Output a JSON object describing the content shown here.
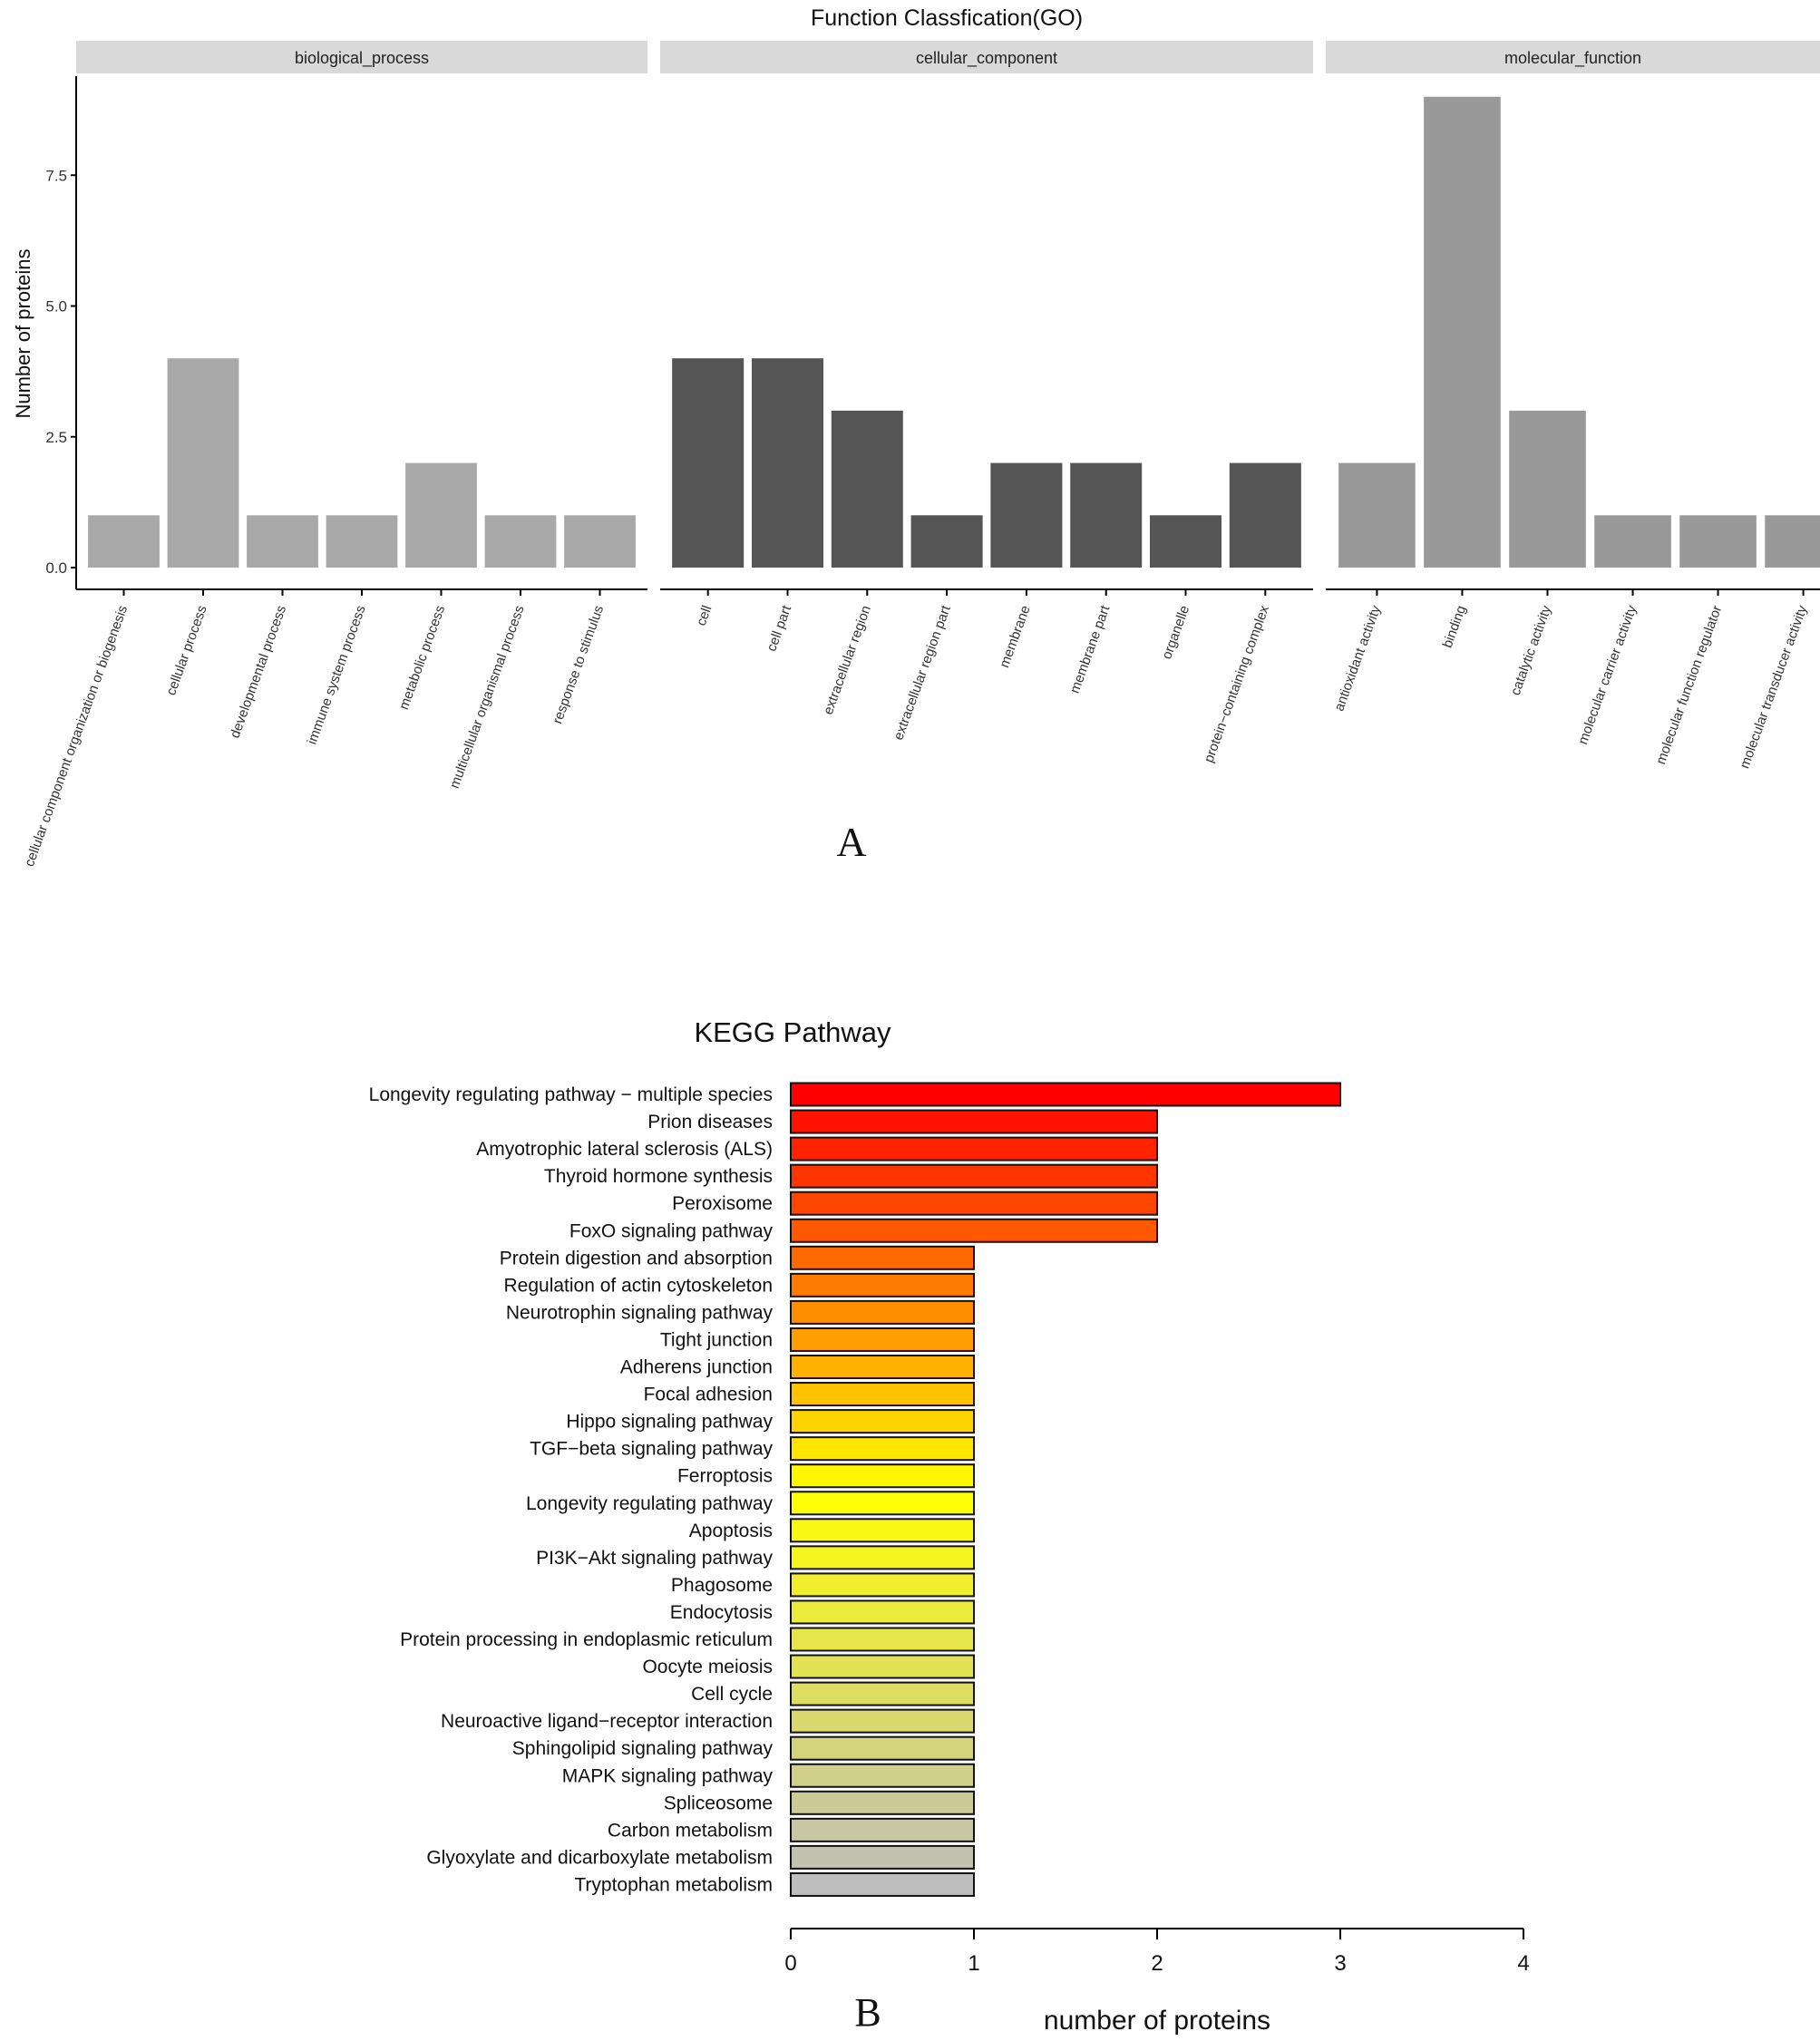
{
  "chart_data": [
    {
      "type": "bar",
      "title": "Function Classfication(GO)",
      "ylabel": "Number of proteins",
      "xlabel": "",
      "ylim": [
        0,
        9.4
      ],
      "yticks": [
        "0.0",
        "2.5",
        "5.0",
        "7.5"
      ],
      "ytick_values": [
        0,
        2.5,
        5,
        7.5
      ],
      "panel_label": "A",
      "facets": [
        {
          "name": "biological_process",
          "color": "#A8A8A8",
          "categories": [
            "cellular component organization or biogenesis",
            "cellular process",
            "developmental process",
            "immune system process",
            "metabolic process",
            "multicellular organismal process",
            "response to stimulus"
          ],
          "values": [
            1,
            4,
            1,
            1,
            2,
            1,
            1
          ]
        },
        {
          "name": "cellular_component",
          "color": "#555555",
          "categories": [
            "cell",
            "cell part",
            "extracellular region",
            "extracellular region part",
            "membrane",
            "membrane part",
            "organelle",
            "protein−containing complex"
          ],
          "values": [
            4,
            4,
            3,
            1,
            2,
            2,
            1,
            2
          ]
        },
        {
          "name": "molecular_function",
          "color": "#999999",
          "categories": [
            "antioxidant activity",
            "binding",
            "catalytic activity",
            "molecular carrier activity",
            "molecular function regulator",
            "molecular transducer activity"
          ],
          "values": [
            2,
            9,
            3,
            1,
            1,
            1
          ]
        }
      ]
    },
    {
      "type": "bar",
      "orientation": "horizontal",
      "title": "KEGG Pathway",
      "xlabel": "number of proteins",
      "xlim": [
        0,
        4
      ],
      "xticks": [
        "0",
        "1",
        "2",
        "3",
        "4"
      ],
      "panel_label": "B",
      "gradient_colors": [
        "#FF0000",
        "#FFFF00",
        "#BEBEBE"
      ],
      "categories": [
        "Longevity regulating pathway − multiple species",
        "Prion diseases",
        "Amyotrophic lateral sclerosis (ALS)",
        "Thyroid hormone synthesis",
        "Peroxisome",
        "FoxO signaling pathway",
        "Protein digestion and absorption",
        "Regulation of actin cytoskeleton",
        "Neurotrophin signaling pathway",
        "Tight junction",
        "Adherens junction",
        "Focal adhesion",
        "Hippo signaling pathway",
        "TGF−beta signaling pathway",
        "Ferroptosis",
        "Longevity regulating pathway",
        "Apoptosis",
        "PI3K−Akt signaling pathway",
        "Phagosome",
        "Endocytosis",
        "Protein processing in endoplasmic reticulum",
        "Oocyte meiosis",
        "Cell cycle",
        "Neuroactive ligand−receptor interaction",
        "Sphingolipid signaling pathway",
        "MAPK signaling pathway",
        "Spliceosome",
        "Carbon metabolism",
        "Glyoxylate and dicarboxylate metabolism",
        "Tryptophan metabolism"
      ],
      "values": [
        3,
        2,
        2,
        2,
        2,
        2,
        1,
        1,
        1,
        1,
        1,
        1,
        1,
        1,
        1,
        1,
        1,
        1,
        1,
        1,
        1,
        1,
        1,
        1,
        1,
        1,
        1,
        1,
        1,
        1
      ]
    }
  ]
}
